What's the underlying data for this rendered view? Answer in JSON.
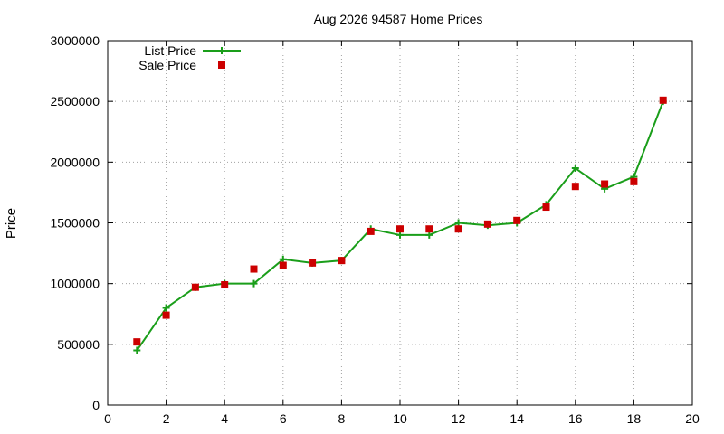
{
  "chart_data": {
    "type": "scatter",
    "title": "Aug 2026 94587 Home Prices",
    "xlabel": "",
    "ylabel": "Price",
    "xlim": [
      0,
      20
    ],
    "ylim": [
      0,
      3000000
    ],
    "x_ticks": [
      0,
      2,
      4,
      6,
      8,
      10,
      12,
      14,
      16,
      18,
      20
    ],
    "y_ticks": [
      0,
      500000,
      1000000,
      1500000,
      2000000,
      2500000,
      3000000
    ],
    "grid": true,
    "legend_position": "top-left",
    "series": [
      {
        "name": "List Price",
        "style": "line-with-plus-markers",
        "color": "#1a9e1a",
        "points": [
          [
            1,
            450000
          ],
          [
            2,
            800000
          ],
          [
            3,
            970000
          ],
          [
            4,
            1000000
          ],
          [
            5,
            1000000
          ],
          [
            6,
            1200000
          ],
          [
            7,
            1170000
          ],
          [
            8,
            1190000
          ],
          [
            9,
            1450000
          ],
          [
            10,
            1400000
          ],
          [
            11,
            1400000
          ],
          [
            12,
            1500000
          ],
          [
            13,
            1480000
          ],
          [
            14,
            1500000
          ],
          [
            15,
            1650000
          ],
          [
            16,
            1950000
          ],
          [
            17,
            1780000
          ],
          [
            18,
            1880000
          ],
          [
            19,
            2500000
          ]
        ]
      },
      {
        "name": "Sale Price",
        "style": "square-markers",
        "color": "#cc0000",
        "points": [
          [
            1,
            520000
          ],
          [
            2,
            740000
          ],
          [
            3,
            970000
          ],
          [
            4,
            990000
          ],
          [
            5,
            1120000
          ],
          [
            6,
            1150000
          ],
          [
            7,
            1170000
          ],
          [
            8,
            1190000
          ],
          [
            9,
            1430000
          ],
          [
            10,
            1450000
          ],
          [
            11,
            1450000
          ],
          [
            12,
            1450000
          ],
          [
            13,
            1490000
          ],
          [
            14,
            1520000
          ],
          [
            15,
            1630000
          ],
          [
            16,
            1800000
          ],
          [
            17,
            1820000
          ],
          [
            18,
            1840000
          ],
          [
            19,
            2510000
          ]
        ]
      }
    ]
  }
}
